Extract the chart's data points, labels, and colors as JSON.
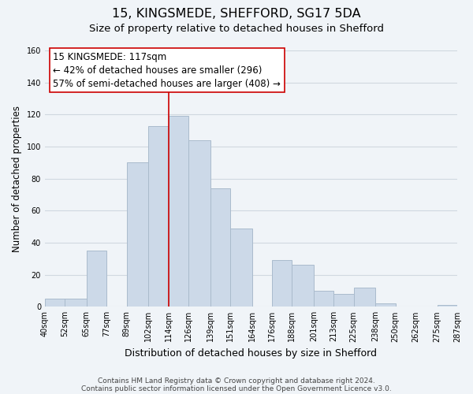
{
  "title": "15, KINGSMEDE, SHEFFORD, SG17 5DA",
  "subtitle": "Size of property relative to detached houses in Shefford",
  "xlabel": "Distribution of detached houses by size in Shefford",
  "ylabel": "Number of detached properties",
  "bar_edges": [
    40,
    52,
    65,
    77,
    89,
    102,
    114,
    126,
    139,
    151,
    164,
    176,
    188,
    201,
    213,
    225,
    238,
    250,
    262,
    275,
    287
  ],
  "bar_heights": [
    5,
    5,
    35,
    0,
    90,
    113,
    119,
    104,
    74,
    49,
    0,
    29,
    26,
    10,
    8,
    12,
    2,
    0,
    0,
    1
  ],
  "bar_color": "#ccd9e8",
  "bar_edgecolor": "#aabbcc",
  "vline_x": 114,
  "vline_color": "#cc0000",
  "annotation_text_line1": "15 KINGSMEDE: 117sqm",
  "annotation_text_line2": "← 42% of detached houses are smaller (296)",
  "annotation_text_line3": "57% of semi-detached houses are larger (408) →",
  "ylim": [
    0,
    160
  ],
  "yticks": [
    0,
    20,
    40,
    60,
    80,
    100,
    120,
    140,
    160
  ],
  "tick_labels": [
    "40sqm",
    "52sqm",
    "65sqm",
    "77sqm",
    "89sqm",
    "102sqm",
    "114sqm",
    "126sqm",
    "139sqm",
    "151sqm",
    "164sqm",
    "176sqm",
    "188sqm",
    "201sqm",
    "213sqm",
    "225sqm",
    "238sqm",
    "250sqm",
    "262sqm",
    "275sqm",
    "287sqm"
  ],
  "footer_line1": "Contains HM Land Registry data © Crown copyright and database right 2024.",
  "footer_line2": "Contains public sector information licensed under the Open Government Licence v3.0.",
  "background_color": "#f0f4f8",
  "plot_bg_color": "#f0f4f8",
  "grid_color": "#d0d8e0",
  "title_fontsize": 11.5,
  "subtitle_fontsize": 9.5,
  "xlabel_fontsize": 9,
  "ylabel_fontsize": 8.5,
  "footer_fontsize": 6.5,
  "annotation_fontsize": 8.5,
  "tick_fontsize": 7
}
